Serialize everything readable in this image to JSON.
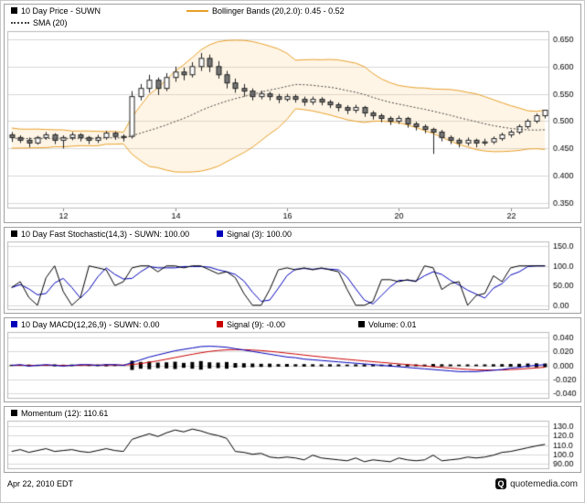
{
  "price_panel": {
    "title": "10 Day Price - SUWN",
    "sma_label": "SMA (20)",
    "bollinger_label": "Bollinger Bands (20,2.0): 0.45 - 0.52"
  },
  "stoch_panel": {
    "main_label": "10 Day Fast Stochastic(14,3) - SUWN: 100.00",
    "signal_label": "Signal (3): 100.00"
  },
  "macd_panel": {
    "main_label": "10 Day MACD(12,26,9) - SUWN: 0.00",
    "signal_label": "Signal (9): -0.00",
    "volume_label": "Volume: 0.01"
  },
  "momentum_panel": {
    "main_label": "Momentum (12): 110.61"
  },
  "footer": {
    "date": "Apr 22, 2010 EDT",
    "brand": "quotemedia.com",
    "brand_icon": "Q"
  },
  "theme": {
    "price_swatch": "#000000",
    "sma": "#444444",
    "bollinger": "#e8a02a",
    "band_fill": "rgba(245,190,90,0.15)",
    "stochastic": "#000000",
    "stoch_signal": "#0000bb",
    "macd": "#0000bb",
    "macd_signal": "#cc0000",
    "volume": "#000000",
    "momentum": "#000000",
    "grid": "#d9d9d9",
    "plot_border": "#bbbbbb",
    "candle_up_fill": "#ffffff",
    "candle_down_fill": "#777777",
    "candle_stroke": "#222222"
  },
  "chart_data": [
    {
      "type": "candlestick",
      "title": "10 Day Price - SUWN",
      "symbol": "SUWN",
      "overlays": [
        {
          "name": "SMA (20)",
          "period": 20,
          "style": "dotted"
        },
        {
          "name": "Bollinger Bands (20,2.0)",
          "period": 20,
          "stddev": 2.0,
          "current_range": "0.45 - 0.52"
        }
      ],
      "ylim": [
        0.34,
        0.665
      ],
      "yticks": [
        {
          "v": 0.65,
          "label": "0.650"
        },
        {
          "v": 0.6,
          "label": "0.600"
        },
        {
          "v": 0.55,
          "label": "0.550"
        },
        {
          "v": 0.5,
          "label": "0.500"
        },
        {
          "v": 0.45,
          "label": "0.450"
        },
        {
          "v": 0.4,
          "label": "0.400"
        },
        {
          "v": 0.35,
          "label": "0.350"
        }
      ],
      "x_ticks": [
        {
          "pos": 6,
          "label": "12"
        },
        {
          "pos": 19,
          "label": "14"
        },
        {
          "pos": 32,
          "label": "16"
        },
        {
          "pos": 45,
          "label": "20"
        },
        {
          "pos": 58,
          "label": "22"
        }
      ],
      "pre_closes": [
        0.47,
        0.455,
        0.48,
        0.465,
        0.45,
        0.475,
        0.485,
        0.46,
        0.47,
        0.452,
        0.478,
        0.483,
        0.458,
        0.465,
        0.48,
        0.455,
        0.472,
        0.485,
        0.46,
        0.468,
        0.475,
        0.452,
        0.47,
        0.48,
        0.458,
        0.466,
        0.478,
        0.462,
        0.472,
        0.47
      ],
      "ohlc": [
        [
          0.475,
          0.48,
          0.462,
          0.47
        ],
        [
          0.47,
          0.474,
          0.46,
          0.465
        ],
        [
          0.465,
          0.47,
          0.452,
          0.46
        ],
        [
          0.46,
          0.473,
          0.457,
          0.47
        ],
        [
          0.47,
          0.48,
          0.466,
          0.475
        ],
        [
          0.475,
          0.478,
          0.458,
          0.465
        ],
        [
          0.465,
          0.474,
          0.45,
          0.47
        ],
        [
          0.47,
          0.48,
          0.465,
          0.475
        ],
        [
          0.475,
          0.478,
          0.463,
          0.47
        ],
        [
          0.47,
          0.473,
          0.458,
          0.465
        ],
        [
          0.465,
          0.475,
          0.46,
          0.47
        ],
        [
          0.47,
          0.482,
          0.466,
          0.478
        ],
        [
          0.478,
          0.481,
          0.466,
          0.472
        ],
        [
          0.472,
          0.476,
          0.463,
          0.47
        ],
        [
          0.472,
          0.555,
          0.468,
          0.545
        ],
        [
          0.545,
          0.568,
          0.538,
          0.56
        ],
        [
          0.56,
          0.585,
          0.552,
          0.575
        ],
        [
          0.575,
          0.58,
          0.548,
          0.56
        ],
        [
          0.56,
          0.588,
          0.555,
          0.58
        ],
        [
          0.58,
          0.6,
          0.572,
          0.59
        ],
        [
          0.59,
          0.598,
          0.575,
          0.585
        ],
        [
          0.585,
          0.608,
          0.58,
          0.6
        ],
        [
          0.6,
          0.625,
          0.592,
          0.615
        ],
        [
          0.615,
          0.622,
          0.59,
          0.6
        ],
        [
          0.6,
          0.61,
          0.578,
          0.585
        ],
        [
          0.585,
          0.592,
          0.56,
          0.57
        ],
        [
          0.57,
          0.578,
          0.552,
          0.56
        ],
        [
          0.56,
          0.568,
          0.545,
          0.555
        ],
        [
          0.555,
          0.56,
          0.538,
          0.545
        ],
        [
          0.545,
          0.556,
          0.54,
          0.55
        ],
        [
          0.55,
          0.554,
          0.538,
          0.545
        ],
        [
          0.545,
          0.55,
          0.533,
          0.54
        ],
        [
          0.54,
          0.55,
          0.536,
          0.545
        ],
        [
          0.545,
          0.549,
          0.534,
          0.54
        ],
        [
          0.54,
          0.545,
          0.528,
          0.535
        ],
        [
          0.535,
          0.545,
          0.53,
          0.54
        ],
        [
          0.54,
          0.544,
          0.529,
          0.535
        ],
        [
          0.535,
          0.539,
          0.524,
          0.53
        ],
        [
          0.53,
          0.534,
          0.518,
          0.525
        ],
        [
          0.525,
          0.529,
          0.513,
          0.52
        ],
        [
          0.52,
          0.53,
          0.515,
          0.525
        ],
        [
          0.525,
          0.528,
          0.508,
          0.515
        ],
        [
          0.515,
          0.519,
          0.503,
          0.51
        ],
        [
          0.51,
          0.514,
          0.498,
          0.505
        ],
        [
          0.505,
          0.509,
          0.493,
          0.5
        ],
        [
          0.5,
          0.51,
          0.495,
          0.505
        ],
        [
          0.505,
          0.508,
          0.488,
          0.495
        ],
        [
          0.495,
          0.499,
          0.483,
          0.49
        ],
        [
          0.49,
          0.494,
          0.478,
          0.485
        ],
        [
          0.485,
          0.488,
          0.44,
          0.48
        ],
        [
          0.48,
          0.484,
          0.463,
          0.47
        ],
        [
          0.47,
          0.474,
          0.458,
          0.465
        ],
        [
          0.465,
          0.469,
          0.452,
          0.46
        ],
        [
          0.46,
          0.47,
          0.455,
          0.465
        ],
        [
          0.465,
          0.468,
          0.452,
          0.46
        ],
        [
          0.46,
          0.468,
          0.455,
          0.462
        ],
        [
          0.462,
          0.472,
          0.458,
          0.468
        ],
        [
          0.468,
          0.479,
          0.464,
          0.475
        ],
        [
          0.475,
          0.484,
          0.47,
          0.48
        ],
        [
          0.48,
          0.494,
          0.476,
          0.49
        ],
        [
          0.49,
          0.504,
          0.486,
          0.5
        ],
        [
          0.5,
          0.514,
          0.496,
          0.51
        ],
        [
          0.51,
          0.52,
          0.505,
          0.52
        ]
      ]
    },
    {
      "type": "line",
      "title": "10 Day Fast Stochastic(14,3) - SUWN",
      "ylim": [
        -12,
        162
      ],
      "yticks": [
        {
          "v": 150,
          "label": "150.0"
        },
        {
          "v": 100,
          "label": "100.0"
        },
        {
          "v": 50,
          "label": "50.00"
        },
        {
          "v": 0,
          "label": "0.00"
        }
      ],
      "series": [
        {
          "name": "Fast Stochastic(14,3)",
          "current": "100.00",
          "values": [
            45,
            60,
            20,
            0,
            70,
            100,
            35,
            0,
            20,
            100,
            95,
            90,
            50,
            60,
            95,
            100,
            100,
            85,
            100,
            100,
            95,
            100,
            100,
            90,
            80,
            85,
            70,
            30,
            0,
            0,
            40,
            90,
            95,
            90,
            95,
            90,
            95,
            90,
            85,
            40,
            0,
            0,
            10,
            65,
            65,
            60,
            65,
            60,
            100,
            95,
            40,
            55,
            60,
            0,
            25,
            30,
            75,
            60,
            95,
            100,
            100,
            100,
            100
          ]
        },
        {
          "name": "Signal (3)",
          "current": "100.00",
          "derived": "sma(3) of Fast Stochastic values"
        }
      ]
    },
    {
      "type": "line+bars",
      "title": "10 Day MACD(12,26,9) - SUWN",
      "ylim": [
        -0.048,
        0.048
      ],
      "yticks": [
        {
          "v": 0.04,
          "label": "0.040"
        },
        {
          "v": 0.02,
          "label": "0.020"
        },
        {
          "v": 0.0,
          "label": "0.000"
        },
        {
          "v": -0.02,
          "label": "-0.020"
        },
        {
          "v": -0.04,
          "label": "-0.040"
        }
      ],
      "series": [
        {
          "name": "MACD(12,26,9)",
          "current": "0.00",
          "values": [
            0.0,
            0.001,
            -0.001,
            0.0,
            0.001,
            0.0,
            -0.001,
            0.0,
            0.001,
            0.001,
            0.0,
            0.001,
            0.001,
            0.0,
            0.004,
            0.008,
            0.012,
            0.015,
            0.018,
            0.021,
            0.023,
            0.025,
            0.027,
            0.0275,
            0.027,
            0.026,
            0.024,
            0.022,
            0.02,
            0.018,
            0.016,
            0.014,
            0.012,
            0.011,
            0.009,
            0.008,
            0.007,
            0.006,
            0.005,
            0.004,
            0.003,
            0.002,
            0.001,
            0.0,
            -0.001,
            -0.002,
            -0.003,
            -0.004,
            -0.005,
            -0.006,
            -0.007,
            -0.008,
            -0.009,
            -0.009,
            -0.009,
            -0.008,
            -0.007,
            -0.006,
            -0.004,
            -0.003,
            -0.001,
            0.0,
            0.001
          ]
        },
        {
          "name": "Signal (9)",
          "current": "-0.00",
          "derived": "ema(9) of MACD values"
        },
        {
          "name": "Volume",
          "current": "0.01",
          "render": "bars",
          "values": [
            0.004,
            0.003,
            0.005,
            0.004,
            0.003,
            0.006,
            0.004,
            0.005,
            0.003,
            0.004,
            0.005,
            0.006,
            0.004,
            0.003,
            0.03,
            0.022,
            0.025,
            0.018,
            0.02,
            0.024,
            0.016,
            0.022,
            0.028,
            0.02,
            0.018,
            0.022,
            0.015,
            0.014,
            0.012,
            0.01,
            0.011,
            0.008,
            0.009,
            0.007,
            0.008,
            0.007,
            0.006,
            0.007,
            0.006,
            0.005,
            0.006,
            0.007,
            0.006,
            0.005,
            0.006,
            0.005,
            0.007,
            0.006,
            0.005,
            0.009,
            0.007,
            0.006,
            0.005,
            0.006,
            0.005,
            0.006,
            0.007,
            0.008,
            0.009,
            0.01,
            0.012,
            0.013,
            0.012
          ]
        }
      ]
    },
    {
      "type": "line",
      "title": "Momentum (12)",
      "ylim": [
        84,
        136
      ],
      "yticks": [
        {
          "v": 130,
          "label": "130.0"
        },
        {
          "v": 120,
          "label": "120.0"
        },
        {
          "v": 110,
          "label": "110.0"
        },
        {
          "v": 100,
          "label": "100.0"
        },
        {
          "v": 90,
          "label": "90.00"
        }
      ],
      "series": [
        {
          "name": "Momentum (12)",
          "current": "110.61",
          "values": [
            103,
            105,
            102,
            104,
            106,
            103,
            104,
            105,
            103,
            102,
            104,
            106,
            104,
            103,
            116,
            119,
            122,
            119,
            123,
            126,
            124,
            127,
            125,
            122,
            120,
            117,
            103,
            102,
            100,
            101,
            97,
            96,
            97,
            96,
            94,
            99,
            96,
            95,
            94,
            93,
            96,
            92,
            94,
            93,
            92,
            96,
            94,
            93,
            94,
            99,
            93,
            94,
            95,
            97,
            96,
            97,
            99,
            102,
            103,
            105,
            107,
            109,
            110.61
          ]
        }
      ]
    }
  ]
}
